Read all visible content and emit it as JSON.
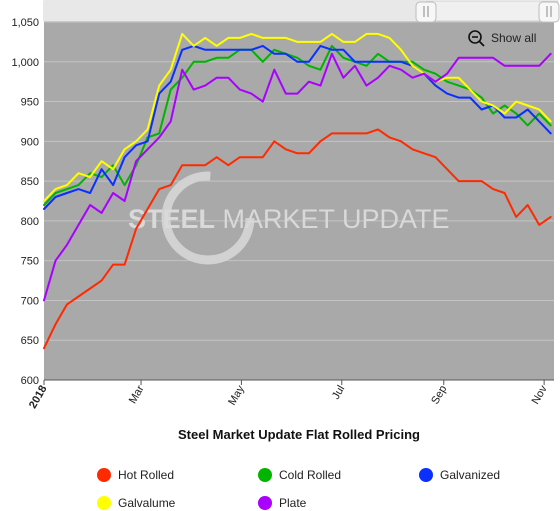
{
  "chart_data": {
    "type": "line",
    "title": "Steel Market Update Flat Rolled Pricing",
    "xlabel": "",
    "ylabel": "",
    "ylim": [
      600,
      1050
    ],
    "yticks": [
      600,
      650,
      700,
      750,
      800,
      850,
      900,
      950,
      1000,
      1050
    ],
    "ytick_labels": [
      "600",
      "650",
      "700",
      "750",
      "800",
      "850",
      "900",
      "950",
      "1,000",
      "1,050"
    ],
    "xlim": [
      "2018-01-01",
      "2018-11-07"
    ],
    "xticks": [
      {
        "date": "2018-01-01",
        "label": "2018",
        "bold": true
      },
      {
        "date": "2018-03-01",
        "label": "Mar",
        "bold": false
      },
      {
        "date": "2018-05-01",
        "label": "May",
        "bold": false
      },
      {
        "date": "2018-07-01",
        "label": "Jul",
        "bold": false
      },
      {
        "date": "2018-09-01",
        "label": "Sep",
        "bold": false
      },
      {
        "date": "2018-11-01",
        "label": "Nov",
        "bold": false
      }
    ],
    "grid": true,
    "legend_position": "bottom",
    "x": [
      "2018-01-01",
      "2018-01-08",
      "2018-01-15",
      "2018-01-22",
      "2018-01-29",
      "2018-02-05",
      "2018-02-12",
      "2018-02-19",
      "2018-02-26",
      "2018-03-05",
      "2018-03-12",
      "2018-03-19",
      "2018-03-26",
      "2018-04-02",
      "2018-04-09",
      "2018-04-16",
      "2018-04-23",
      "2018-04-30",
      "2018-05-07",
      "2018-05-14",
      "2018-05-21",
      "2018-05-28",
      "2018-06-04",
      "2018-06-11",
      "2018-06-18",
      "2018-06-25",
      "2018-07-02",
      "2018-07-09",
      "2018-07-16",
      "2018-07-23",
      "2018-07-30",
      "2018-08-06",
      "2018-08-13",
      "2018-08-20",
      "2018-08-27",
      "2018-09-03",
      "2018-09-10",
      "2018-09-17",
      "2018-09-24",
      "2018-10-01",
      "2018-10-08",
      "2018-10-15",
      "2018-10-22",
      "2018-10-29",
      "2018-11-05"
    ],
    "series": [
      {
        "name": "Hot Rolled",
        "color": "#ff2a00",
        "values": [
          640,
          670,
          695,
          705,
          715,
          725,
          745,
          745,
          790,
          815,
          840,
          845,
          870,
          870,
          870,
          880,
          870,
          880,
          880,
          880,
          900,
          890,
          885,
          885,
          900,
          910,
          910,
          910,
          910,
          915,
          905,
          900,
          890,
          885,
          880,
          865,
          850,
          850,
          850,
          840,
          835,
          805,
          820,
          795,
          805
        ]
      },
      {
        "name": "Cold Rolled",
        "color": "#00b400",
        "values": [
          820,
          835,
          840,
          845,
          860,
          855,
          870,
          845,
          870,
          905,
          910,
          965,
          980,
          1000,
          1000,
          1005,
          1005,
          1015,
          1015,
          1000,
          1015,
          1010,
          1005,
          995,
          990,
          1020,
          1005,
          1000,
          995,
          1010,
          1000,
          1000,
          1000,
          990,
          985,
          975,
          970,
          965,
          955,
          935,
          945,
          935,
          920,
          935,
          920
        ]
      },
      {
        "name": "Galvanized",
        "color": "#0a2fff",
        "values": [
          815,
          830,
          835,
          840,
          835,
          865,
          845,
          880,
          895,
          900,
          960,
          975,
          1015,
          1020,
          1015,
          1015,
          1015,
          1015,
          1015,
          1020,
          1010,
          1010,
          1000,
          1000,
          1020,
          1015,
          1015,
          1000,
          1000,
          1000,
          1000,
          1000,
          995,
          985,
          970,
          960,
          955,
          955,
          940,
          945,
          930,
          930,
          940,
          925,
          910
        ]
      },
      {
        "name": "Galvalume",
        "color": "#ffff00",
        "values": [
          825,
          840,
          845,
          860,
          855,
          875,
          865,
          890,
          900,
          915,
          970,
          990,
          1035,
          1020,
          1030,
          1020,
          1030,
          1030,
          1035,
          1030,
          1030,
          1030,
          1025,
          1025,
          1025,
          1035,
          1025,
          1025,
          1035,
          1035,
          1030,
          1015,
          995,
          985,
          975,
          980,
          980,
          965,
          950,
          945,
          935,
          950,
          945,
          940,
          925
        ]
      },
      {
        "name": "Plate",
        "color": "#aa00ff",
        "values": [
          700,
          750,
          770,
          795,
          820,
          810,
          835,
          825,
          875,
          890,
          905,
          925,
          990,
          965,
          970,
          980,
          980,
          965,
          960,
          950,
          990,
          960,
          960,
          975,
          970,
          1010,
          980,
          995,
          970,
          980,
          995,
          990,
          980,
          985,
          975,
          985,
          1005,
          1005,
          1005,
          1005,
          995,
          995,
          995,
          995,
          1010
        ]
      }
    ]
  },
  "controls": {
    "show_all_label": "Show all",
    "zoom_icon": "zoom-out-icon",
    "range_handle_icon": "drag-handle-icon"
  },
  "watermark": {
    "text_bold": "STEEL",
    "text_regular": " MARKET UPDATE"
  },
  "colors": {
    "plot_background": "#a9a9a9",
    "gridline": "#c4c4c4",
    "scrollbar_background": "#f2f2f2"
  }
}
